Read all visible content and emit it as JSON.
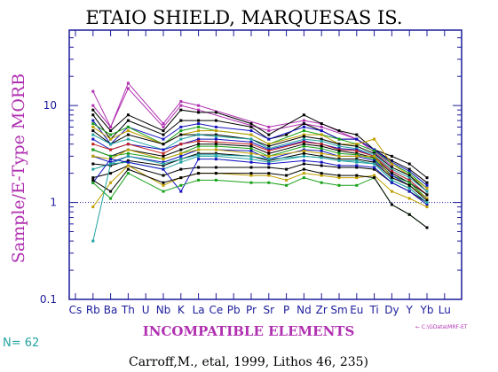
{
  "chart_data": {
    "type": "line",
    "title": "ETAIO SHIELD, MARQUESAS IS.",
    "ylabel": "Sample/E-Type MORB",
    "xlabel": "INCOMPATIBLE ELEMENTS",
    "y_scale": "log",
    "ylim": [
      0.1,
      60
    ],
    "y_ticks": [
      "10",
      "1",
      "0.1"
    ],
    "reference_line": 1,
    "categories": [
      "Cs",
      "Rb",
      "Ba",
      "Th",
      "U",
      "Nb",
      "K",
      "La",
      "Ce",
      "Pb",
      "Pr",
      "Sr",
      "P",
      "Nd",
      "Zr",
      "Sm",
      "Eu",
      "Ti",
      "Dy",
      "Y",
      "Yb",
      "Lu"
    ],
    "count_label": "N= 62",
    "file_note": "← C:\\GData\\MRF-ET",
    "citation": "Carroff,M., etal, 1999, Lithos 46, 235)",
    "colors": {
      "axis": "#1c1c9c",
      "title": "#000000",
      "label": "#b030b0",
      "count": "#23a3a3"
    },
    "series": [
      {
        "color": "#b030b0",
        "values": [
          null,
          14,
          6,
          17,
          null,
          6.5,
          11,
          10,
          null,
          null,
          null,
          6,
          null,
          7,
          6.5,
          null,
          4.5,
          3.5,
          2.5,
          null,
          null,
          null
        ]
      },
      {
        "color": "#b030b0",
        "values": [
          null,
          10,
          6,
          15,
          null,
          6,
          10,
          9,
          null,
          null,
          null,
          5.5,
          null,
          6.5,
          6,
          null,
          4.5,
          3.3,
          2.4,
          null,
          null,
          null
        ]
      },
      {
        "color": "#000000",
        "values": [
          null,
          9,
          5.5,
          8,
          null,
          5.5,
          9,
          8.5,
          8.5,
          null,
          6.5,
          5,
          null,
          8,
          6.5,
          5.5,
          5,
          3.5,
          3,
          2.5,
          1.8,
          null
        ]
      },
      {
        "color": "#000000",
        "values": [
          null,
          8,
          4.5,
          7,
          null,
          5,
          7,
          7,
          7,
          null,
          6,
          4.5,
          5,
          6.5,
          5.5,
          4.5,
          4.5,
          3.5,
          2.7,
          2.2,
          1.6,
          null
        ]
      },
      {
        "color": "#1414c0",
        "values": [
          null,
          7,
          4,
          6,
          null,
          4.5,
          6,
          6.5,
          6,
          null,
          5.5,
          4.5,
          null,
          6,
          5.5,
          4.5,
          4.5,
          3.5,
          2.6,
          2.1,
          1.5,
          null
        ]
      },
      {
        "color": "#18a018",
        "values": [
          null,
          6.5,
          5,
          6,
          null,
          4,
          5.5,
          6,
          5.5,
          null,
          5,
          4,
          null,
          5.5,
          5,
          4.5,
          4,
          3.4,
          2.5,
          2,
          1.4,
          null
        ]
      },
      {
        "color": "#c0a000",
        "values": [
          null,
          6,
          4.5,
          5.5,
          null,
          4,
          5,
          5.5,
          5.5,
          null,
          5,
          4,
          null,
          5,
          5,
          4,
          4,
          4.5,
          2.5,
          1.9,
          1.4,
          null
        ]
      },
      {
        "color": "#000000",
        "values": [
          null,
          5.5,
          4,
          5,
          null,
          4,
          5,
          5,
          5,
          null,
          4.5,
          3.8,
          null,
          4.8,
          4.5,
          4,
          3.8,
          3.2,
          2.3,
          1.9,
          1.3,
          null
        ]
      },
      {
        "color": "#23a3a3",
        "values": [
          null,
          5,
          4,
          4.5,
          null,
          3.5,
          4.5,
          5,
          4.8,
          null,
          4.5,
          3.6,
          null,
          4.5,
          4.3,
          3.8,
          3.6,
          3.1,
          2.2,
          1.8,
          1.3,
          null
        ]
      },
      {
        "color": "#1414c0",
        "values": [
          null,
          4.5,
          3.5,
          4,
          null,
          3.5,
          4,
          4.5,
          4.5,
          null,
          4.2,
          3.5,
          null,
          4.3,
          4,
          3.6,
          3.5,
          3,
          2.1,
          1.7,
          1.2,
          null
        ]
      },
      {
        "color": "#c02020",
        "values": [
          null,
          4,
          3.5,
          4,
          null,
          3.2,
          4,
          4.3,
          4.2,
          null,
          4,
          3.4,
          null,
          4.2,
          4,
          3.5,
          3.4,
          3,
          2.1,
          1.7,
          1.2,
          null
        ]
      },
      {
        "color": "#000000",
        "values": [
          null,
          3.5,
          3,
          3.5,
          null,
          3,
          3.5,
          4,
          4,
          null,
          3.8,
          3.2,
          null,
          4,
          3.8,
          3.4,
          3.2,
          2.9,
          2,
          1.6,
          1.2,
          null
        ]
      },
      {
        "color": "#18a018",
        "values": [
          null,
          3.5,
          3,
          3.2,
          null,
          2.8,
          3.2,
          3.8,
          3.8,
          null,
          3.6,
          3,
          null,
          3.8,
          3.6,
          3.2,
          3.1,
          2.8,
          1.9,
          1.6,
          1.1,
          null
        ]
      },
      {
        "color": "#1414c0",
        "values": [
          null,
          3,
          2.6,
          3,
          null,
          2.6,
          3,
          3.5,
          3.5,
          null,
          3.4,
          2.8,
          null,
          3.5,
          3.4,
          3,
          3,
          2.7,
          1.9,
          1.5,
          1.1,
          null
        ]
      },
      {
        "color": "#c0a000",
        "values": [
          null,
          3,
          2.8,
          3.5,
          null,
          2.8,
          3.2,
          3.5,
          3.5,
          null,
          3.2,
          3,
          null,
          3.4,
          3.2,
          3,
          3,
          3,
          1.8,
          1.5,
          1.1,
          null
        ]
      },
      {
        "color": "#000000",
        "values": [
          null,
          2.5,
          2.4,
          2.7,
          null,
          2.4,
          2.8,
          3.2,
          3.2,
          null,
          3,
          2.7,
          null,
          3.2,
          3,
          2.8,
          2.8,
          2.6,
          1.8,
          1.5,
          1.05,
          null
        ]
      },
      {
        "color": "#23a3a3",
        "values": [
          null,
          2.2,
          2.5,
          2.6,
          null,
          2.2,
          2.6,
          3,
          3,
          null,
          2.8,
          2.6,
          null,
          3,
          2.9,
          2.7,
          2.7,
          2.5,
          1.7,
          1.4,
          1,
          null
        ]
      },
      {
        "color": "#000000",
        "values": [
          null,
          1.8,
          2,
          2.4,
          null,
          1.9,
          2.2,
          2.3,
          2.3,
          null,
          2.3,
          2.3,
          2.2,
          2.5,
          2.4,
          2.3,
          2.3,
          2.2,
          1.6,
          1.3,
          1,
          null
        ]
      },
      {
        "color": "#1414c0",
        "values": [
          null,
          1.6,
          2.8,
          2.6,
          null,
          2.2,
          1.3,
          2.8,
          2.8,
          null,
          2.6,
          2.5,
          null,
          2.7,
          2.6,
          2.4,
          2.4,
          2.3,
          1.6,
          1.3,
          0.95,
          null
        ]
      },
      {
        "color": "#c0a000",
        "values": [
          null,
          0.9,
          1.6,
          2.4,
          null,
          1.5,
          1.8,
          2,
          2,
          null,
          1.9,
          1.9,
          1.7,
          2,
          1.9,
          1.8,
          1.8,
          1.9,
          1.3,
          1.1,
          0.9,
          null
        ]
      },
      {
        "color": "#18a018",
        "values": [
          null,
          1.6,
          1.1,
          2,
          null,
          1.3,
          1.5,
          1.7,
          1.7,
          null,
          1.6,
          1.6,
          1.5,
          1.8,
          1.6,
          1.5,
          1.5,
          1.8,
          0.95,
          0.75,
          0.55,
          null
        ]
      },
      {
        "color": "#000000",
        "values": [
          null,
          1.7,
          1.3,
          2.2,
          null,
          1.6,
          1.8,
          2,
          2,
          null,
          2,
          2,
          1.9,
          2.2,
          2,
          1.9,
          1.9,
          1.8,
          0.95,
          0.75,
          0.55,
          null
        ]
      },
      {
        "color": "#23a3a3",
        "values": [
          null,
          0.4,
          2.5,
          3,
          null,
          2.5,
          2.8,
          3.1,
          3.1,
          null,
          3,
          2.8,
          null,
          3,
          2.9,
          2.7,
          2.6,
          2.5,
          1.7,
          1.4,
          1,
          null
        ]
      }
    ]
  }
}
